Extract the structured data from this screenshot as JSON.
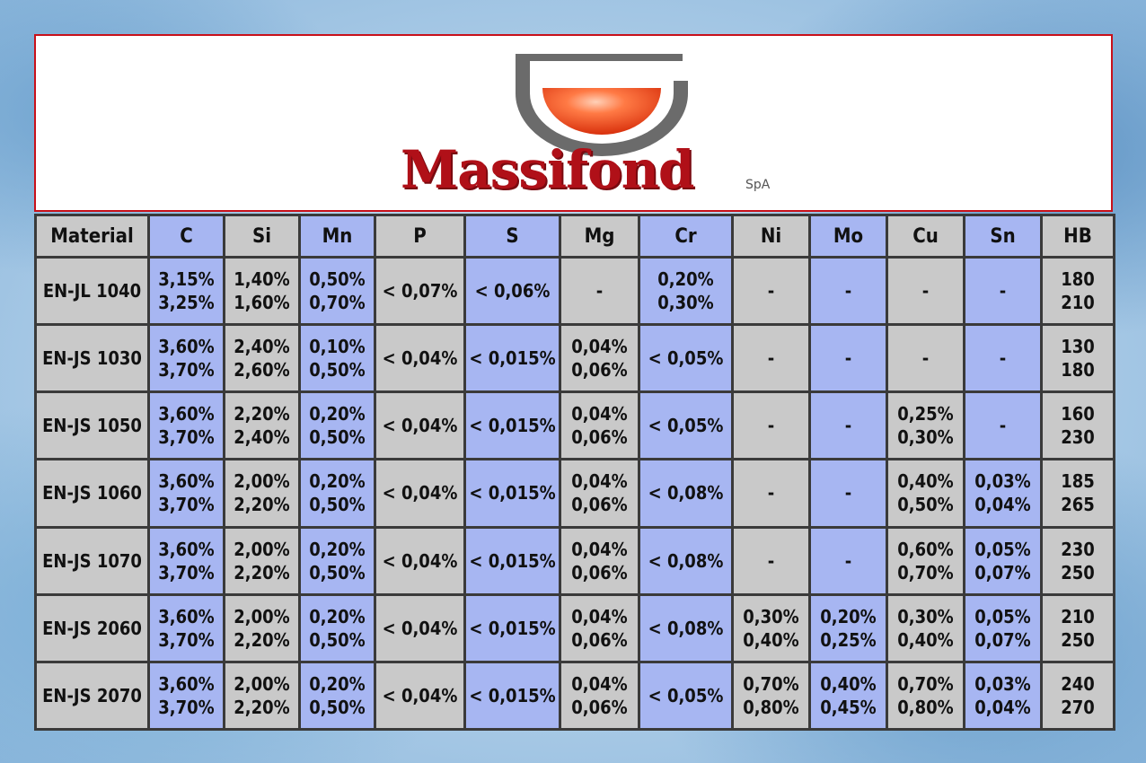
{
  "brand": {
    "name": "Massifond",
    "suffix": "SpA"
  },
  "colors": {
    "gray_cell": "#c9c9c9",
    "blue_cell": "#a7b6f2",
    "brand_red": "#b01018",
    "logo_orange": "#f0501e",
    "logo_gray": "#6b6b6b"
  },
  "table": {
    "headers": [
      "Material",
      "C",
      "Si",
      "Mn",
      "P",
      "S",
      "Mg",
      "Cr",
      "Ni",
      "Mo",
      "Cu",
      "Sn",
      "HB"
    ],
    "rows": [
      [
        "EN-JL 1040",
        [
          "3,15%",
          "3,25%"
        ],
        [
          "1,40%",
          "1,60%"
        ],
        [
          "0,50%",
          "0,70%"
        ],
        [
          "< 0,07%"
        ],
        [
          "< 0,06%"
        ],
        [
          "-"
        ],
        [
          "0,20%",
          "0,30%"
        ],
        [
          "-"
        ],
        [
          "-"
        ],
        [
          "-"
        ],
        [
          "-"
        ],
        [
          "180",
          "210"
        ]
      ],
      [
        "EN-JS 1030",
        [
          "3,60%",
          "3,70%"
        ],
        [
          "2,40%",
          "2,60%"
        ],
        [
          "0,10%",
          "0,50%"
        ],
        [
          "< 0,04%"
        ],
        [
          "< 0,015%"
        ],
        [
          "0,04%",
          "0,06%"
        ],
        [
          "< 0,05%"
        ],
        [
          "-"
        ],
        [
          "-"
        ],
        [
          "-"
        ],
        [
          "-"
        ],
        [
          "130",
          "180"
        ]
      ],
      [
        "EN-JS 1050",
        [
          "3,60%",
          "3,70%"
        ],
        [
          "2,20%",
          "2,40%"
        ],
        [
          "0,20%",
          "0,50%"
        ],
        [
          "< 0,04%"
        ],
        [
          "< 0,015%"
        ],
        [
          "0,04%",
          "0,06%"
        ],
        [
          "< 0,05%"
        ],
        [
          "-"
        ],
        [
          "-"
        ],
        [
          "0,25%",
          "0,30%"
        ],
        [
          "-"
        ],
        [
          "160",
          "230"
        ]
      ],
      [
        "EN-JS 1060",
        [
          "3,60%",
          "3,70%"
        ],
        [
          "2,00%",
          "2,20%"
        ],
        [
          "0,20%",
          "0,50%"
        ],
        [
          "< 0,04%"
        ],
        [
          "< 0,015%"
        ],
        [
          "0,04%",
          "0,06%"
        ],
        [
          "< 0,08%"
        ],
        [
          "-"
        ],
        [
          "-"
        ],
        [
          "0,40%",
          "0,50%"
        ],
        [
          "0,03%",
          "0,04%"
        ],
        [
          "185",
          "265"
        ]
      ],
      [
        "EN-JS 1070",
        [
          "3,60%",
          "3,70%"
        ],
        [
          "2,00%",
          "2,20%"
        ],
        [
          "0,20%",
          "0,50%"
        ],
        [
          "< 0,04%"
        ],
        [
          "< 0,015%"
        ],
        [
          "0,04%",
          "0,06%"
        ],
        [
          "< 0,08%"
        ],
        [
          "-"
        ],
        [
          "-"
        ],
        [
          "0,60%",
          "0,70%"
        ],
        [
          "0,05%",
          "0,07%"
        ],
        [
          "230",
          "250"
        ]
      ],
      [
        "EN-JS 2060",
        [
          "3,60%",
          "3,70%"
        ],
        [
          "2,00%",
          "2,20%"
        ],
        [
          "0,20%",
          "0,50%"
        ],
        [
          "< 0,04%"
        ],
        [
          "< 0,015%"
        ],
        [
          "0,04%",
          "0,06%"
        ],
        [
          "< 0,08%"
        ],
        [
          "0,30%",
          "0,40%"
        ],
        [
          "0,20%",
          "0,25%"
        ],
        [
          "0,30%",
          "0,40%"
        ],
        [
          "0,05%",
          "0,07%"
        ],
        [
          "210",
          "250"
        ]
      ],
      [
        "EN-JS 2070",
        [
          "3,60%",
          "3,70%"
        ],
        [
          "2,00%",
          "2,20%"
        ],
        [
          "0,20%",
          "0,50%"
        ],
        [
          "< 0,04%"
        ],
        [
          "< 0,015%"
        ],
        [
          "0,04%",
          "0,06%"
        ],
        [
          "< 0,05%"
        ],
        [
          "0,70%",
          "0,80%"
        ],
        [
          "0,40%",
          "0,45%"
        ],
        [
          "0,70%",
          "0,80%"
        ],
        [
          "0,03%",
          "0,04%"
        ],
        [
          "240",
          "270"
        ]
      ]
    ]
  }
}
